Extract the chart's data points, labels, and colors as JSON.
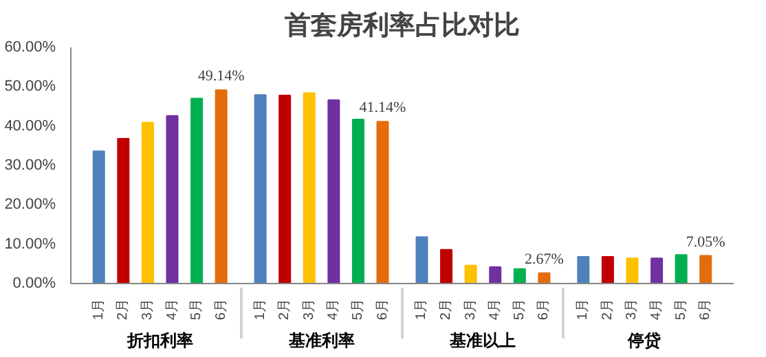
{
  "chart_data": {
    "type": "bar",
    "title": "首套房利率占比对比",
    "categories": [
      "1月",
      "2月",
      "3月",
      "4月",
      "5月",
      "6月",
      "1月",
      "2月",
      "3月",
      "4月",
      "5月",
      "6月",
      "1月",
      "2月",
      "3月",
      "4月",
      "5月",
      "6月",
      "1月",
      "2月",
      "3月",
      "4月",
      "5月",
      "6月"
    ],
    "annotations": [
      "折扣利率",
      "基准利率",
      "基准以上",
      "停贷"
    ],
    "values": [
      33.6,
      36.8,
      40.9,
      42.6,
      47.0,
      49.14,
      47.9,
      47.8,
      48.4,
      46.6,
      41.7,
      41.14,
      11.8,
      8.6,
      4.6,
      4.2,
      3.7,
      2.67,
      6.8,
      6.8,
      6.4,
      6.4,
      7.3,
      7.05
    ],
    "colors": [
      "#4f81bd",
      "#c00000",
      "#ffc000",
      "#7030a0",
      "#00b050",
      "#e46c0a",
      "#4f81bd",
      "#c00000",
      "#ffc000",
      "#7030a0",
      "#00b050",
      "#e46c0a",
      "#4f81bd",
      "#c00000",
      "#ffc000",
      "#7030a0",
      "#00b050",
      "#e46c0a",
      "#4f81bd",
      "#c00000",
      "#ffc000",
      "#7030a0",
      "#00b050",
      "#e46c0a"
    ],
    "value_labels": [
      null,
      null,
      null,
      null,
      null,
      "49.14%",
      null,
      null,
      null,
      null,
      null,
      "41.14%",
      null,
      null,
      null,
      null,
      null,
      "2.67%",
      null,
      null,
      null,
      null,
      null,
      "7.05%"
    ],
    "ylim": [
      0,
      60
    ],
    "yticks": [
      {
        "value": 0,
        "label": "0.00%"
      },
      {
        "value": 10,
        "label": "10.00%"
      },
      {
        "value": 20,
        "label": "20.00%"
      },
      {
        "value": 30,
        "label": "30.00%"
      },
      {
        "value": 40,
        "label": "40.00%"
      },
      {
        "value": 50,
        "label": "50.00%"
      },
      {
        "value": 60,
        "label": "60.00%"
      }
    ],
    "grid": false
  }
}
